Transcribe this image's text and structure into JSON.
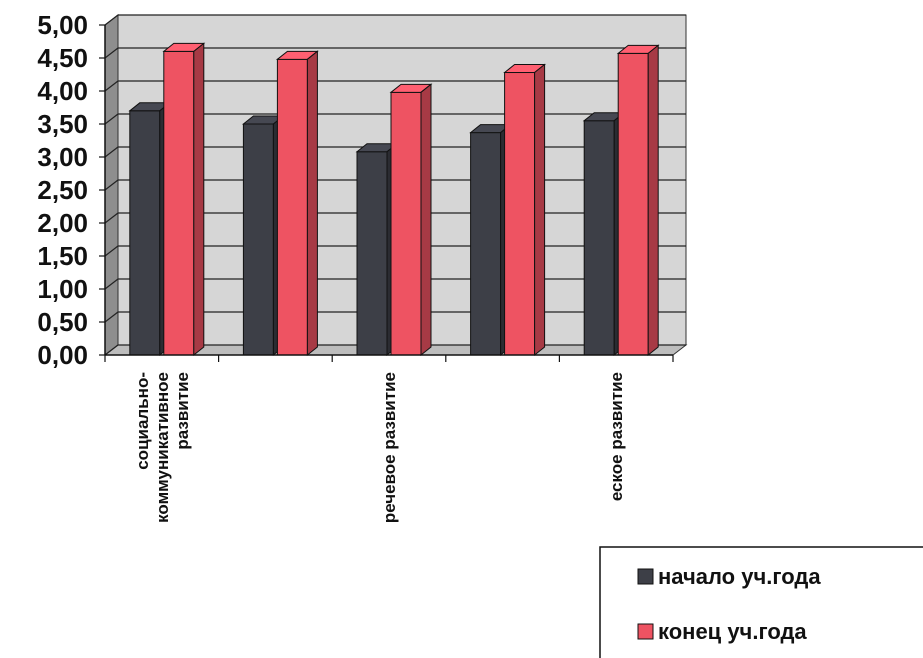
{
  "chart_data": {
    "type": "bar",
    "three_d": true,
    "categories": [
      [
        "социально-",
        "коммуникативное",
        "развитие"
      ],
      [],
      [
        "речевое развитие"
      ],
      [],
      [
        "еское развитие"
      ]
    ],
    "series": [
      {
        "name": "начало уч.года",
        "color": "#3d3f47",
        "values": [
          3.7,
          3.5,
          3.08,
          3.37,
          3.55
        ]
      },
      {
        "name": "конец уч.года",
        "color": "#ee5362",
        "values": [
          4.6,
          4.48,
          3.98,
          4.28,
          4.57
        ]
      }
    ],
    "yticks": [
      "0,00",
      "0,50",
      "1,00",
      "1,50",
      "2,00",
      "2,50",
      "3,00",
      "3,50",
      "4,00",
      "4,50",
      "5,00"
    ],
    "ylim": [
      0,
      5
    ],
    "grid": true,
    "legend_position": "bottom-right",
    "title": "",
    "xlabel": "",
    "ylabel": ""
  }
}
